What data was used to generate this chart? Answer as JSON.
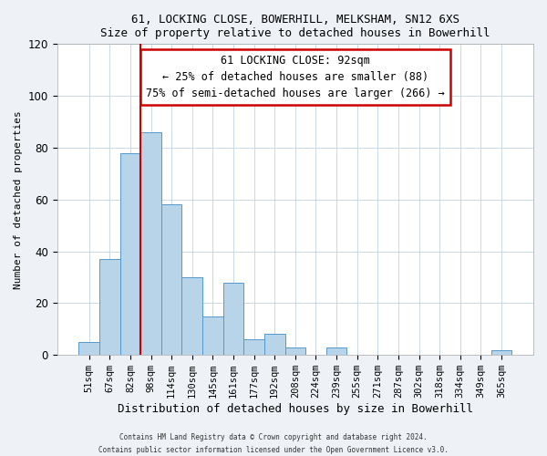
{
  "title_line1": "61, LOCKING CLOSE, BOWERHILL, MELKSHAM, SN12 6XS",
  "title_line2": "Size of property relative to detached houses in Bowerhill",
  "xlabel": "Distribution of detached houses by size in Bowerhill",
  "ylabel": "Number of detached properties",
  "bin_labels": [
    "51sqm",
    "67sqm",
    "82sqm",
    "98sqm",
    "114sqm",
    "130sqm",
    "145sqm",
    "161sqm",
    "177sqm",
    "192sqm",
    "208sqm",
    "224sqm",
    "239sqm",
    "255sqm",
    "271sqm",
    "287sqm",
    "302sqm",
    "318sqm",
    "334sqm",
    "349sqm",
    "365sqm"
  ],
  "bar_values": [
    5,
    37,
    78,
    86,
    58,
    30,
    15,
    28,
    6,
    8,
    3,
    0,
    3,
    0,
    0,
    0,
    0,
    0,
    0,
    0,
    2
  ],
  "bar_color": "#b8d4e8",
  "bar_edge_color": "#5599cc",
  "vline_color": "#cc0000",
  "ylim": [
    0,
    120
  ],
  "yticks": [
    0,
    20,
    40,
    60,
    80,
    100,
    120
  ],
  "annotation_title": "61 LOCKING CLOSE: 92sqm",
  "annotation_line1": "← 25% of detached houses are smaller (88)",
  "annotation_line2": "75% of semi-detached houses are larger (266) →",
  "footer_line1": "Contains HM Land Registry data © Crown copyright and database right 2024.",
  "footer_line2": "Contains public sector information licensed under the Open Government Licence v3.0.",
  "background_color": "#eef2f7",
  "plot_background_color": "#ffffff",
  "grid_color": "#c8d8e8"
}
